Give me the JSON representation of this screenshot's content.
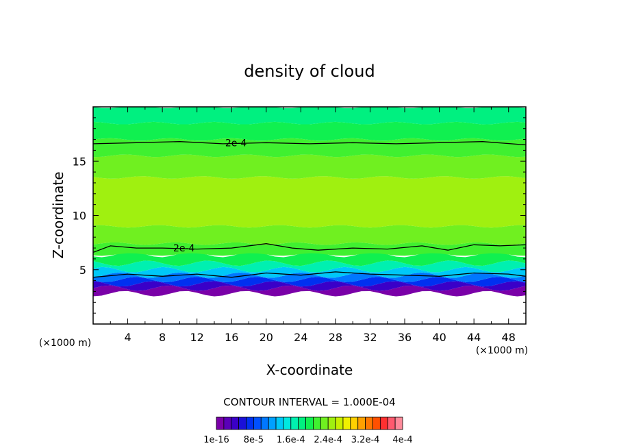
{
  "chart_data": {
    "type": "heatmap",
    "title": "density of cloud",
    "xlabel": "X-coordinate",
    "ylabel": "Z-coordinate",
    "x_unit_left": "(×1000 m)",
    "x_unit_right": "(×1000 m)",
    "xlim": [
      0,
      50
    ],
    "ylim": [
      0,
      20
    ],
    "x_ticks": [
      4,
      8,
      12,
      16,
      20,
      24,
      28,
      32,
      36,
      40,
      44,
      48
    ],
    "x_tick_labels": [
      "4",
      "8",
      "12",
      "16",
      "20",
      "24",
      "28",
      "32",
      "36",
      "40",
      "44",
      "48"
    ],
    "y_ticks": [
      5,
      10,
      15
    ],
    "y_tick_labels": [
      "5",
      "10",
      "15"
    ],
    "contour_interval_text": "CONTOUR INTERVAL = 1.000E-04",
    "contour_labels": [
      {
        "text": "2e-4",
        "x": 16.5,
        "z": 16.7
      },
      {
        "text": "2e-4",
        "x": 10.5,
        "z": 7.0
      }
    ],
    "colorbar": {
      "colors": [
        "#7a00a8",
        "#5a00b8",
        "#3a00c8",
        "#1a10d8",
        "#0030f0",
        "#0050ff",
        "#0078ff",
        "#00a0ff",
        "#00c8f8",
        "#00e8e0",
        "#00f0b0",
        "#00f080",
        "#10f050",
        "#40f030",
        "#70f020",
        "#a0f010",
        "#c8f000",
        "#f0f000",
        "#ffd000",
        "#ffa000",
        "#ff7800",
        "#ff5000",
        "#ff3030",
        "#ff5a6e",
        "#ff8a9a"
      ],
      "tick_labels": [
        "1e-16",
        "8e-5",
        "1.6e-4",
        "2.4e-4",
        "3.2e-4",
        "4e-4"
      ]
    },
    "field_bands": [
      {
        "z0": 2.8,
        "z1": 3.3,
        "color": "#7a00a8"
      },
      {
        "z0": 3.3,
        "z1": 3.7,
        "color": "#3a00c8"
      },
      {
        "z0": 3.7,
        "z1": 4.1,
        "color": "#0030f0"
      },
      {
        "z0": 4.1,
        "z1": 4.5,
        "color": "#0078ff"
      },
      {
        "z0": 4.5,
        "z1": 5.0,
        "color": "#00c8f8"
      },
      {
        "z0": 5.0,
        "z1": 5.6,
        "color": "#00f0b0"
      },
      {
        "z0": 5.6,
        "z1": 6.4,
        "color": "#10f050"
      },
      {
        "z0": 6.4,
        "z1": 7.4,
        "color": "#40f030"
      },
      {
        "z0": 7.4,
        "z1": 9.0,
        "color": "#70f020"
      },
      {
        "z0": 9.0,
        "z1": 13.5,
        "color": "#a0f010"
      },
      {
        "z0": 13.5,
        "z1": 15.5,
        "color": "#70f020"
      },
      {
        "z0": 15.5,
        "z1": 17.0,
        "color": "#40f030"
      },
      {
        "z0": 17.0,
        "z1": 18.5,
        "color": "#10f050"
      },
      {
        "z0": 18.5,
        "z1": 20.0,
        "color": "#00f080"
      }
    ],
    "contour_lines": [
      {
        "level": "2e-4",
        "points": [
          [
            0,
            16.6
          ],
          [
            5,
            16.7
          ],
          [
            10,
            16.8
          ],
          [
            15,
            16.6
          ],
          [
            20,
            16.7
          ],
          [
            25,
            16.6
          ],
          [
            30,
            16.7
          ],
          [
            35,
            16.6
          ],
          [
            40,
            16.7
          ],
          [
            45,
            16.8
          ],
          [
            50,
            16.5
          ]
        ]
      },
      {
        "level": "2e-4",
        "points": [
          [
            0,
            6.6
          ],
          [
            2,
            7.2
          ],
          [
            5,
            7.0
          ],
          [
            8,
            7.0
          ],
          [
            12,
            6.9
          ],
          [
            16,
            7.0
          ],
          [
            20,
            7.4
          ],
          [
            23,
            7.0
          ],
          [
            26,
            6.8
          ],
          [
            30,
            7.0
          ],
          [
            34,
            6.9
          ],
          [
            38,
            7.2
          ],
          [
            41,
            6.8
          ],
          [
            44,
            7.3
          ],
          [
            47,
            7.2
          ],
          [
            50,
            7.3
          ]
        ]
      },
      {
        "level": "1e-4",
        "points": [
          [
            0,
            4.3
          ],
          [
            4,
            4.6
          ],
          [
            8,
            4.4
          ],
          [
            12,
            4.6
          ],
          [
            16,
            4.3
          ],
          [
            20,
            4.7
          ],
          [
            24,
            4.5
          ],
          [
            28,
            4.8
          ],
          [
            32,
            4.6
          ],
          [
            36,
            4.5
          ],
          [
            40,
            4.4
          ],
          [
            44,
            4.7
          ],
          [
            48,
            4.6
          ],
          [
            50,
            4.4
          ]
        ]
      }
    ]
  }
}
